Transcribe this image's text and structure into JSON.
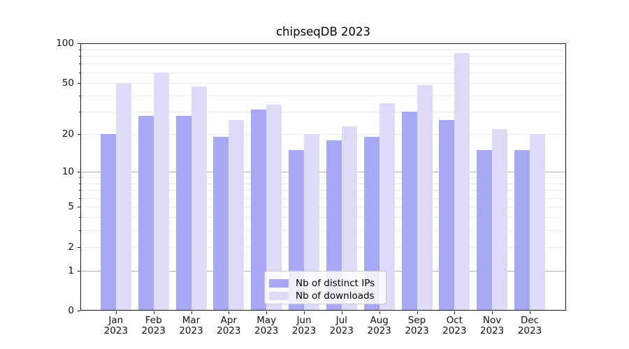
{
  "figure": {
    "title": "chipseqDB 2023"
  },
  "chart_data": {
    "type": "bar",
    "title": "chipseqDB 2023",
    "categories": [
      "Jan 2023",
      "Feb 2023",
      "Mar 2023",
      "Apr 2023",
      "May 2023",
      "Jun 2023",
      "Jul 2023",
      "Aug 2023",
      "Sep 2023",
      "Oct 2023",
      "Nov 2023",
      "Dec 2023"
    ],
    "category_line1": [
      "Jan",
      "Feb",
      "Mar",
      "Apr",
      "May",
      "Jun",
      "Jul",
      "Aug",
      "Sep",
      "Oct",
      "Nov",
      "Dec"
    ],
    "category_line2": [
      "2023",
      "2023",
      "2023",
      "2023",
      "2023",
      "2023",
      "2023",
      "2023",
      "2023",
      "2023",
      "2023",
      "2023"
    ],
    "series": [
      {
        "name": "Nb of distinct IPs",
        "color": "#a8a8f6",
        "values": [
          20,
          28,
          28,
          19,
          31,
          15,
          18,
          19,
          30,
          26,
          15,
          15
        ]
      },
      {
        "name": "Nb of downloads",
        "color": "#dcdcf8",
        "values": [
          50,
          60,
          47,
          26,
          34,
          20,
          23,
          35,
          48,
          84,
          22,
          20
        ]
      }
    ],
    "xlabel": "",
    "ylabel": "",
    "y_axis": {
      "scale": "log1p",
      "lim": [
        0,
        100
      ],
      "tick_values": [
        0,
        1,
        2,
        5,
        10,
        20,
        50,
        100
      ],
      "tick_labels": [
        "0",
        "1",
        "2",
        "5",
        "10",
        "20",
        "50",
        "100"
      ],
      "gridlines_major": [
        1,
        10
      ],
      "gridlines_minor": [
        2,
        3,
        4,
        5,
        6,
        7,
        8,
        9,
        20,
        30,
        40,
        50,
        60,
        70,
        80,
        90
      ]
    },
    "grid": true,
    "legend_position": "lower center"
  },
  "colors": {
    "bar_distinct_ips": "#a8a8f6",
    "bar_downloads": "#dcdcf8",
    "grid_major": "#b0b0b0",
    "grid_minor": "#ebebeb",
    "spine": "#1a1a1a",
    "text": "#111111",
    "legend_border": "#cbcbcb"
  }
}
